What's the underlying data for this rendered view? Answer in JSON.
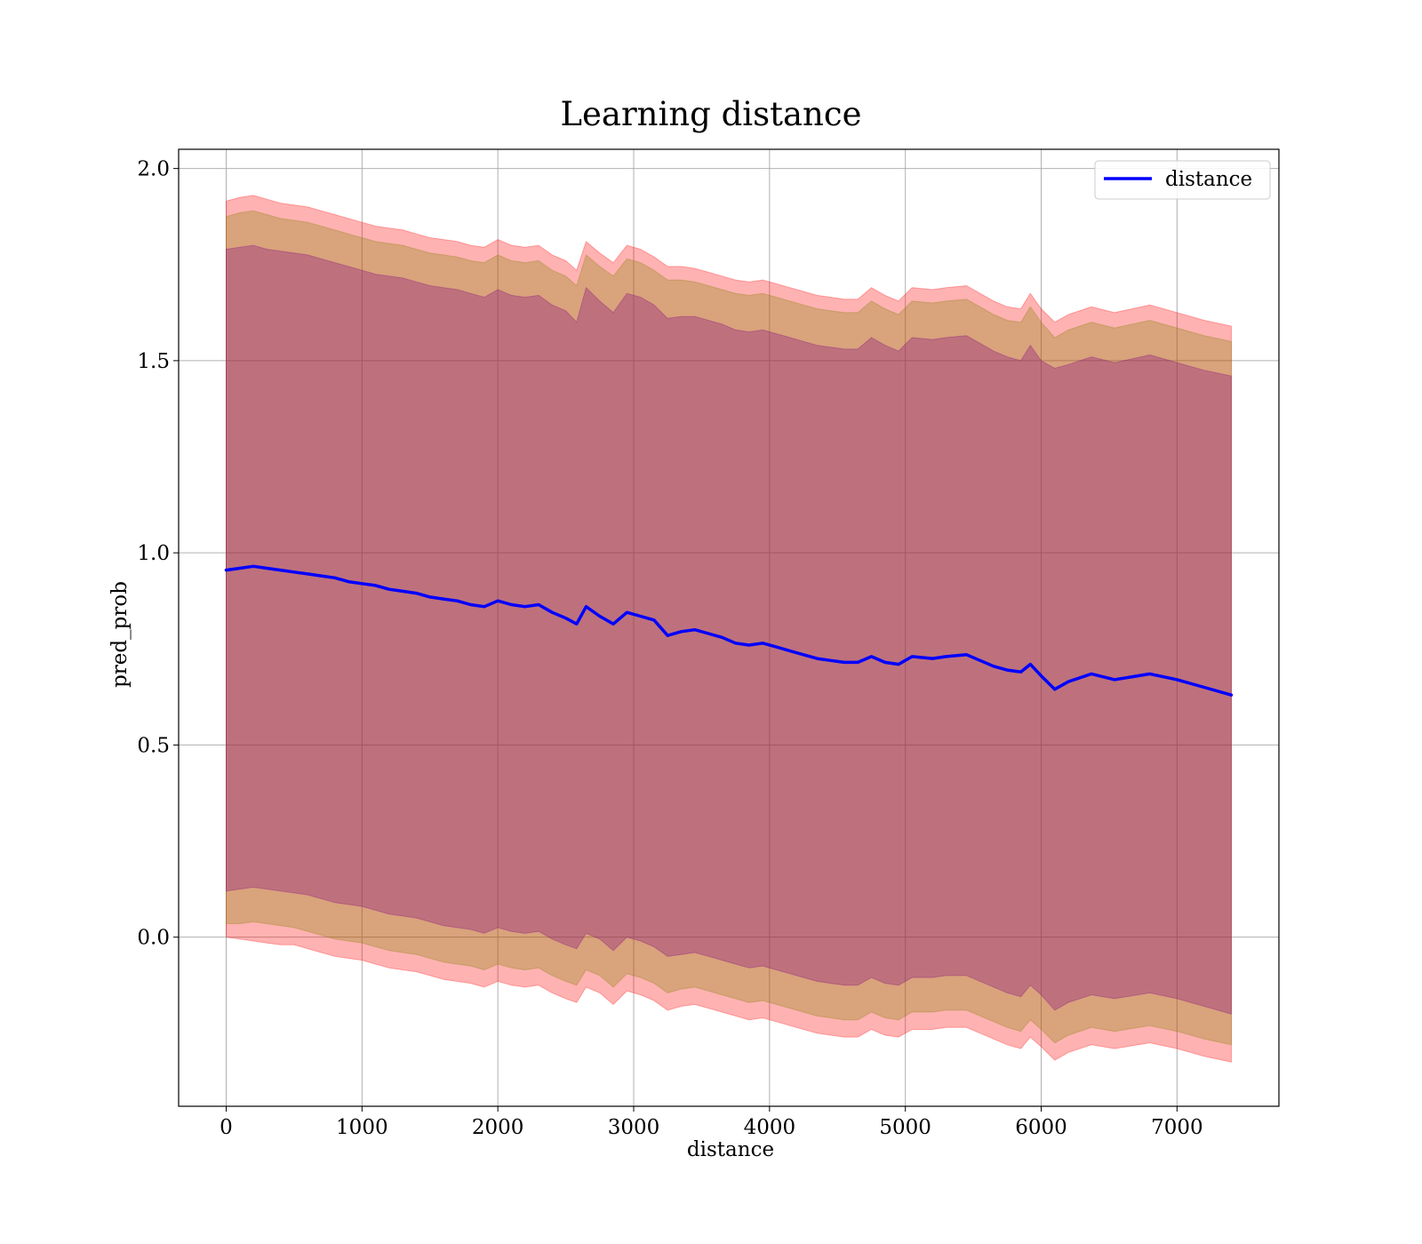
{
  "chart_data": {
    "type": "line",
    "title": "Learning distance",
    "xlabel": "distance",
    "ylabel": "pred_prob",
    "xlim": [
      -350,
      7750
    ],
    "ylim": [
      -0.44,
      2.05
    ],
    "xticks": [
      0,
      1000,
      2000,
      3000,
      4000,
      5000,
      6000,
      7000
    ],
    "yticks": [
      0.0,
      0.5,
      1.0,
      1.5,
      2.0
    ],
    "xtick_labels": [
      "0",
      "1000",
      "2000",
      "3000",
      "4000",
      "5000",
      "6000",
      "7000"
    ],
    "ytick_labels": [
      "0.0",
      "0.5",
      "1.0",
      "1.5",
      "2.0"
    ],
    "grid": true,
    "legend": {
      "position": "top-right",
      "entries": [
        "distance"
      ]
    },
    "colors": {
      "line": "#0000ff",
      "band_outer": "#ff0000",
      "band_middle": "#808000",
      "band_inner": "#800080"
    },
    "series": [
      {
        "name": "distance",
        "x": [
          0,
          100,
          200,
          300,
          400,
          500,
          600,
          700,
          800,
          900,
          1000,
          1100,
          1200,
          1300,
          1400,
          1500,
          1600,
          1700,
          1800,
          1900,
          2000,
          2100,
          2200,
          2300,
          2400,
          2500,
          2580,
          2650,
          2750,
          2850,
          2950,
          3050,
          3150,
          3250,
          3350,
          3450,
          3550,
          3650,
          3750,
          3850,
          3950,
          4050,
          4150,
          4250,
          4350,
          4450,
          4550,
          4650,
          4750,
          4850,
          4950,
          5050,
          5200,
          5300,
          5450,
          5550,
          5650,
          5750,
          5850,
          5920,
          6000,
          6100,
          6200,
          6370,
          6540,
          6800,
          7000,
          7200,
          7400
        ],
        "values": [
          0.955,
          0.96,
          0.965,
          0.96,
          0.955,
          0.95,
          0.945,
          0.94,
          0.935,
          0.925,
          0.92,
          0.915,
          0.905,
          0.9,
          0.895,
          0.885,
          0.88,
          0.875,
          0.865,
          0.86,
          0.875,
          0.865,
          0.86,
          0.865,
          0.845,
          0.83,
          0.815,
          0.86,
          0.835,
          0.815,
          0.845,
          0.835,
          0.825,
          0.785,
          0.795,
          0.8,
          0.79,
          0.78,
          0.765,
          0.76,
          0.765,
          0.755,
          0.745,
          0.735,
          0.725,
          0.72,
          0.715,
          0.715,
          0.73,
          0.715,
          0.71,
          0.73,
          0.725,
          0.73,
          0.735,
          0.72,
          0.705,
          0.695,
          0.69,
          0.71,
          0.68,
          0.645,
          0.665,
          0.685,
          0.67,
          0.685,
          0.67,
          0.65,
          0.63
        ]
      }
    ],
    "bands": [
      {
        "role": "outer",
        "upper": [
          1.915,
          1.925,
          1.93,
          1.92,
          1.91,
          1.905,
          1.9,
          1.89,
          1.88,
          1.87,
          1.86,
          1.85,
          1.845,
          1.84,
          1.83,
          1.82,
          1.815,
          1.81,
          1.8,
          1.795,
          1.815,
          1.8,
          1.795,
          1.8,
          1.775,
          1.76,
          1.735,
          1.81,
          1.78,
          1.755,
          1.8,
          1.79,
          1.77,
          1.745,
          1.745,
          1.74,
          1.73,
          1.72,
          1.71,
          1.705,
          1.71,
          1.7,
          1.69,
          1.68,
          1.67,
          1.665,
          1.66,
          1.66,
          1.69,
          1.67,
          1.655,
          1.69,
          1.685,
          1.69,
          1.695,
          1.675,
          1.655,
          1.64,
          1.635,
          1.675,
          1.635,
          1.6,
          1.62,
          1.64,
          1.625,
          1.645,
          1.625,
          1.605,
          1.59
        ],
        "lower": [
          0.0,
          -0.005,
          -0.01,
          -0.015,
          -0.02,
          -0.02,
          -0.03,
          -0.04,
          -0.05,
          -0.055,
          -0.06,
          -0.07,
          -0.08,
          -0.085,
          -0.09,
          -0.1,
          -0.11,
          -0.115,
          -0.12,
          -0.13,
          -0.115,
          -0.125,
          -0.13,
          -0.125,
          -0.145,
          -0.16,
          -0.17,
          -0.13,
          -0.145,
          -0.175,
          -0.14,
          -0.15,
          -0.165,
          -0.19,
          -0.18,
          -0.175,
          -0.185,
          -0.195,
          -0.205,
          -0.215,
          -0.21,
          -0.22,
          -0.23,
          -0.24,
          -0.25,
          -0.255,
          -0.26,
          -0.26,
          -0.24,
          -0.255,
          -0.26,
          -0.24,
          -0.24,
          -0.235,
          -0.235,
          -0.25,
          -0.265,
          -0.28,
          -0.29,
          -0.26,
          -0.285,
          -0.32,
          -0.3,
          -0.28,
          -0.29,
          -0.275,
          -0.29,
          -0.31,
          -0.325
        ]
      },
      {
        "role": "middle",
        "upper": [
          1.875,
          1.885,
          1.89,
          1.88,
          1.87,
          1.865,
          1.86,
          1.85,
          1.84,
          1.83,
          1.82,
          1.81,
          1.805,
          1.8,
          1.79,
          1.78,
          1.775,
          1.77,
          1.76,
          1.755,
          1.775,
          1.76,
          1.755,
          1.76,
          1.735,
          1.72,
          1.695,
          1.775,
          1.745,
          1.72,
          1.765,
          1.755,
          1.735,
          1.71,
          1.71,
          1.705,
          1.695,
          1.685,
          1.675,
          1.67,
          1.675,
          1.665,
          1.655,
          1.645,
          1.635,
          1.63,
          1.625,
          1.625,
          1.655,
          1.635,
          1.62,
          1.655,
          1.65,
          1.655,
          1.66,
          1.64,
          1.62,
          1.605,
          1.6,
          1.64,
          1.6,
          1.56,
          1.58,
          1.6,
          1.585,
          1.605,
          1.585,
          1.565,
          1.55
        ],
        "lower": [
          0.035,
          0.035,
          0.04,
          0.035,
          0.03,
          0.025,
          0.015,
          0.005,
          -0.005,
          -0.01,
          -0.015,
          -0.025,
          -0.035,
          -0.04,
          -0.045,
          -0.055,
          -0.065,
          -0.07,
          -0.075,
          -0.085,
          -0.07,
          -0.08,
          -0.085,
          -0.08,
          -0.1,
          -0.115,
          -0.125,
          -0.085,
          -0.1,
          -0.13,
          -0.095,
          -0.105,
          -0.12,
          -0.145,
          -0.135,
          -0.13,
          -0.14,
          -0.15,
          -0.16,
          -0.17,
          -0.165,
          -0.175,
          -0.185,
          -0.195,
          -0.205,
          -0.21,
          -0.215,
          -0.215,
          -0.195,
          -0.21,
          -0.215,
          -0.195,
          -0.195,
          -0.19,
          -0.19,
          -0.205,
          -0.22,
          -0.235,
          -0.245,
          -0.215,
          -0.24,
          -0.275,
          -0.255,
          -0.235,
          -0.245,
          -0.23,
          -0.245,
          -0.265,
          -0.28
        ]
      },
      {
        "role": "inner",
        "upper": [
          1.79,
          1.795,
          1.8,
          1.79,
          1.785,
          1.78,
          1.775,
          1.765,
          1.755,
          1.745,
          1.735,
          1.725,
          1.72,
          1.715,
          1.705,
          1.695,
          1.69,
          1.685,
          1.675,
          1.665,
          1.685,
          1.67,
          1.665,
          1.67,
          1.645,
          1.63,
          1.6,
          1.69,
          1.655,
          1.625,
          1.675,
          1.665,
          1.645,
          1.61,
          1.615,
          1.615,
          1.605,
          1.595,
          1.58,
          1.575,
          1.58,
          1.57,
          1.56,
          1.55,
          1.54,
          1.535,
          1.53,
          1.53,
          1.56,
          1.54,
          1.525,
          1.56,
          1.555,
          1.56,
          1.565,
          1.545,
          1.525,
          1.51,
          1.5,
          1.54,
          1.5,
          1.48,
          1.49,
          1.51,
          1.495,
          1.515,
          1.495,
          1.475,
          1.46
        ],
        "lower": [
          0.12,
          0.125,
          0.13,
          0.125,
          0.12,
          0.115,
          0.11,
          0.1,
          0.09,
          0.085,
          0.08,
          0.07,
          0.06,
          0.055,
          0.05,
          0.04,
          0.03,
          0.025,
          0.02,
          0.01,
          0.025,
          0.015,
          0.01,
          0.015,
          -0.005,
          -0.02,
          -0.03,
          0.01,
          -0.005,
          -0.035,
          0.0,
          -0.01,
          -0.025,
          -0.05,
          -0.045,
          -0.04,
          -0.05,
          -0.06,
          -0.07,
          -0.08,
          -0.075,
          -0.085,
          -0.095,
          -0.105,
          -0.115,
          -0.12,
          -0.125,
          -0.125,
          -0.105,
          -0.12,
          -0.125,
          -0.105,
          -0.105,
          -0.1,
          -0.1,
          -0.115,
          -0.13,
          -0.145,
          -0.155,
          -0.125,
          -0.15,
          -0.19,
          -0.17,
          -0.15,
          -0.16,
          -0.145,
          -0.16,
          -0.18,
          -0.2
        ]
      }
    ]
  }
}
